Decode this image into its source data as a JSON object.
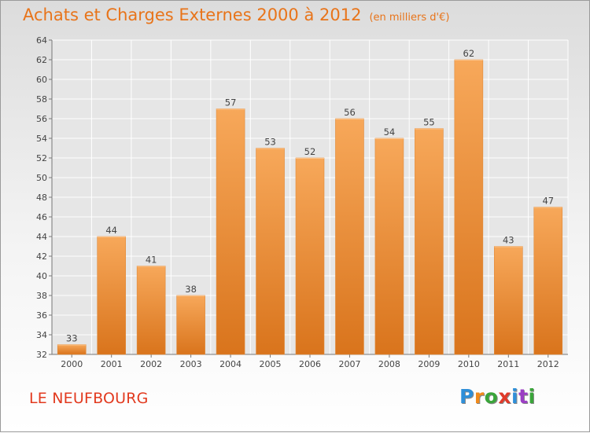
{
  "header": {
    "title": "Achats et Charges Externes 2000 à 2012",
    "unit": "(en milliers d'€)"
  },
  "footer": {
    "commune": "LE NEUFBOURG",
    "logo": [
      "P",
      "r",
      "o",
      "x",
      "i",
      "t",
      "i"
    ]
  },
  "colors": {
    "bar_top": "#f7a85a",
    "bar_bottom": "#d9741c",
    "title": "#e8741a",
    "commune": "#e23a1f",
    "grid": "#ffffff"
  },
  "chart_data": {
    "type": "bar",
    "categories": [
      "2000",
      "2001",
      "2002",
      "2003",
      "2004",
      "2005",
      "2006",
      "2007",
      "2008",
      "2009",
      "2010",
      "2011",
      "2012"
    ],
    "values": [
      33,
      44,
      41,
      38,
      57,
      53,
      52,
      56,
      54,
      55,
      62,
      43,
      47
    ],
    "title": "Achats et Charges Externes 2000 à 2012",
    "ylim": [
      32,
      64
    ],
    "yticks": [
      32,
      34,
      36,
      38,
      40,
      42,
      44,
      46,
      48,
      50,
      52,
      54,
      56,
      58,
      60,
      62,
      64
    ],
    "grid": true,
    "data_labels": true
  }
}
